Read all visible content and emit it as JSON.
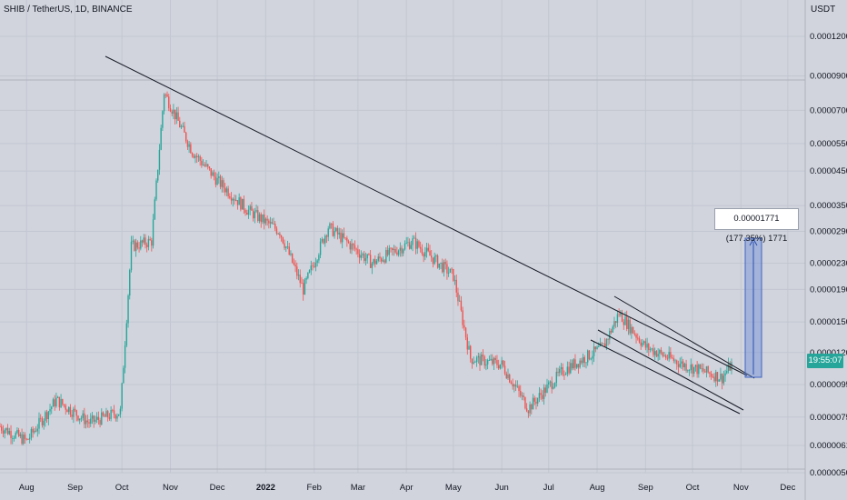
{
  "header": {
    "symbol_title": "SHIB / TetherUS, 1D, BINANCE"
  },
  "price_axis": {
    "unit": "USDT"
  },
  "current_price_badge": "19:55:07",
  "measure_label": "0.00001771 (177.35%) 1771",
  "colors": {
    "background": "#d1d4dc",
    "up": "#26a69a",
    "down": "#ef5350",
    "trendline": "#131722",
    "measure_fill": "#5b7fd6"
  },
  "chart_data": {
    "type": "candlestick",
    "title": "SHIB / TetherUS, 1D, BINANCE",
    "ylabel": "USDT",
    "y_scale": "log",
    "y_ticks": [
      "0.00012000",
      "0.00009000",
      "0.00007000",
      "0.00005500",
      "0.00004500",
      "0.00003500",
      "0.00002900",
      "0.00002300",
      "0.00001900",
      "0.00001500",
      "0.00001200",
      "0.00000950",
      "0.00000750",
      "0.00000610",
      "0.00000500"
    ],
    "x_ticks": [
      "Aug",
      "Sep",
      "Oct",
      "Nov",
      "Dec",
      "2022",
      "Feb",
      "Mar",
      "Apr",
      "May",
      "Jun",
      "Jul",
      "Aug",
      "Sep",
      "Oct",
      "Nov",
      "Dec"
    ],
    "approx_close_path": [
      {
        "date": "2021-07-15",
        "close": 7e-06
      },
      {
        "date": "2021-08-01",
        "close": 6.3e-06
      },
      {
        "date": "2021-08-20",
        "close": 8.5e-06
      },
      {
        "date": "2021-09-10",
        "close": 7.2e-06
      },
      {
        "date": "2021-09-30",
        "close": 7.8e-06
      },
      {
        "date": "2021-10-07",
        "close": 2.6e-05
      },
      {
        "date": "2021-10-20",
        "close": 2.7e-05
      },
      {
        "date": "2021-10-28",
        "close": 8e-05
      },
      {
        "date": "2021-11-15",
        "close": 5.2e-05
      },
      {
        "date": "2021-12-01",
        "close": 4.2e-05
      },
      {
        "date": "2021-12-20",
        "close": 3.4e-05
      },
      {
        "date": "2022-01-10",
        "close": 2.9e-05
      },
      {
        "date": "2022-01-25",
        "close": 1.9e-05
      },
      {
        "date": "2022-02-10",
        "close": 3e-05
      },
      {
        "date": "2022-03-10",
        "close": 2.3e-05
      },
      {
        "date": "2022-04-05",
        "close": 2.7e-05
      },
      {
        "date": "2022-05-01",
        "close": 2.1e-05
      },
      {
        "date": "2022-05-12",
        "close": 1.15e-05
      },
      {
        "date": "2022-06-01",
        "close": 1.1e-05
      },
      {
        "date": "2022-06-18",
        "close": 8e-06
      },
      {
        "date": "2022-07-10",
        "close": 1.05e-05
      },
      {
        "date": "2022-08-05",
        "close": 1.25e-05
      },
      {
        "date": "2022-08-15",
        "close": 1.6e-05
      },
      {
        "date": "2022-09-01",
        "close": 1.25e-05
      },
      {
        "date": "2022-09-25",
        "close": 1.1e-05
      },
      {
        "date": "2022-10-20",
        "close": 1e-05
      },
      {
        "date": "2022-10-26",
        "close": 1.1e-05
      }
    ]
  }
}
